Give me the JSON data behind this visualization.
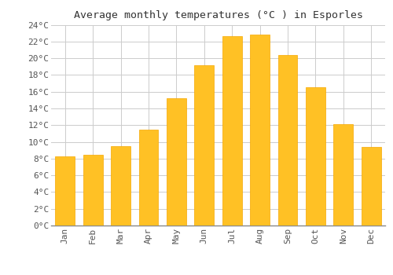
{
  "title": "Average monthly temperatures (°C ) in Esporles",
  "months": [
    "Jan",
    "Feb",
    "Mar",
    "Apr",
    "May",
    "Jun",
    "Jul",
    "Aug",
    "Sep",
    "Oct",
    "Nov",
    "Dec"
  ],
  "values": [
    8.3,
    8.5,
    9.5,
    11.5,
    15.2,
    19.2,
    22.6,
    22.8,
    20.4,
    16.5,
    12.1,
    9.4
  ],
  "bar_color": "#FFC125",
  "bar_edge_color": "#F5A800",
  "ylim": [
    0,
    24
  ],
  "ytick_step": 2,
  "background_color": "#FFFFFF",
  "grid_color": "#CCCCCC",
  "title_fontsize": 9.5,
  "tick_fontsize": 8,
  "font_family": "monospace"
}
